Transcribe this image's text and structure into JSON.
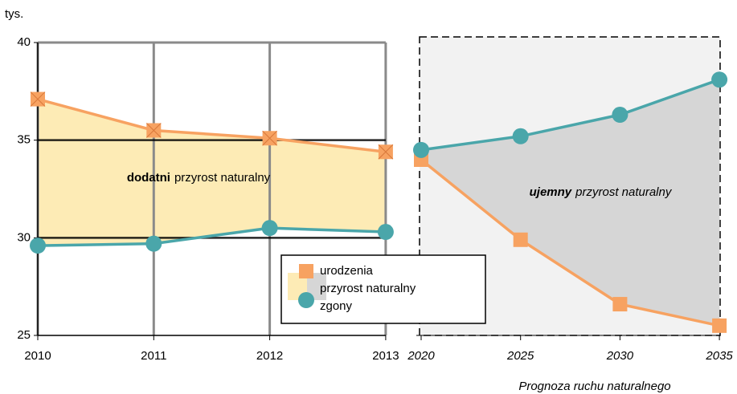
{
  "chart_data": [
    {
      "type": "line",
      "unit_label": "tys.",
      "categories": [
        "2010",
        "2011",
        "2012",
        "2013"
      ],
      "series": [
        {
          "name": "urodzenia",
          "color": "#f7a261",
          "values": [
            37.1,
            35.5,
            35.1,
            34.4
          ]
        },
        {
          "name": "zgony",
          "color": "#4aa6aa",
          "values": [
            29.6,
            29.7,
            30.5,
            30.3
          ]
        }
      ],
      "area_color": "#fdebb5",
      "area_name": "przyrost naturalny",
      "annotation": {
        "bold": "dodatni",
        "rest": "przyrost naturalny"
      },
      "ylim": [
        25,
        40
      ],
      "yticks": [
        25,
        30,
        35,
        40
      ]
    },
    {
      "type": "line",
      "subtitle": "Prognoza ruchu naturalnego",
      "categories": [
        "2020",
        "2025",
        "2030",
        "2035"
      ],
      "series": [
        {
          "name": "urodzenia",
          "color": "#f7a261",
          "values": [
            34.0,
            29.9,
            26.6,
            25.5
          ]
        },
        {
          "name": "zgony",
          "color": "#4aa6aa",
          "values": [
            34.5,
            35.2,
            36.3,
            38.1
          ]
        }
      ],
      "area_color": "#d6d6d6",
      "annotation": {
        "bold": "ujemny",
        "rest": "przyrost naturalny"
      },
      "ylim": [
        25,
        40
      ]
    }
  ]
}
